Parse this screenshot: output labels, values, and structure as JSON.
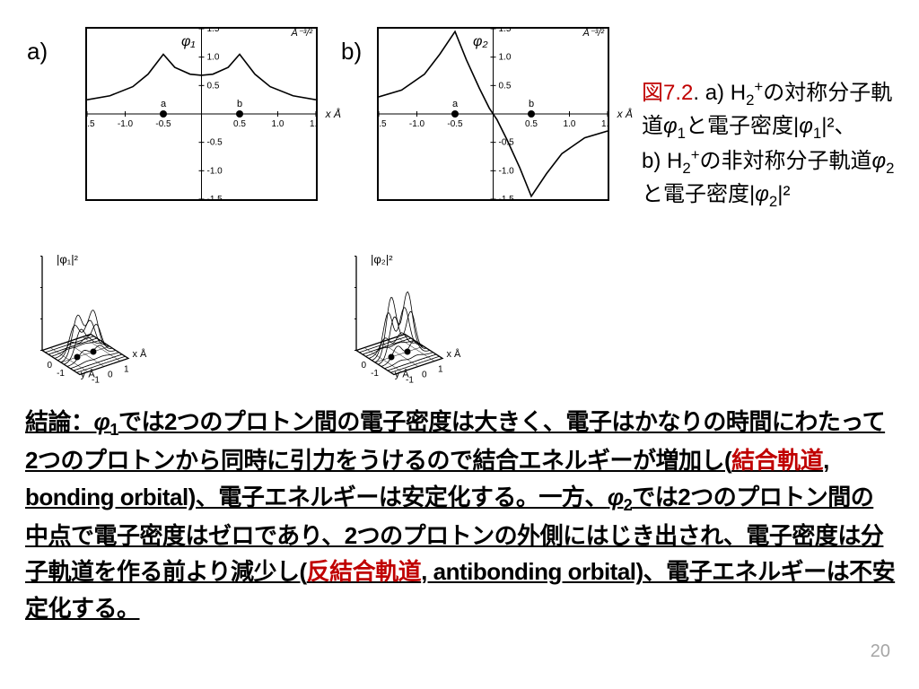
{
  "labels": {
    "a": "a)",
    "b": "b)"
  },
  "plot_a": {
    "phi_label": "φ₁",
    "xaxis": "x Å",
    "yunit": "Å⁻³/²",
    "xrange": [
      -1.5,
      1.5
    ],
    "yrange": [
      -1.5,
      1.5
    ],
    "xticks": [
      "-1.5",
      "-1.0",
      "-0.5",
      "0",
      "0.5",
      "1.0",
      "1.5"
    ],
    "yticks": [
      "-1.5",
      "-1.0",
      "-0.5",
      "0",
      "0.5",
      "1.0",
      "1.5"
    ],
    "atoms": [
      {
        "x": -0.5,
        "label": "a"
      },
      {
        "x": 0.5,
        "label": "b"
      }
    ],
    "curve": [
      [
        -1.5,
        0.25
      ],
      [
        -1.2,
        0.32
      ],
      [
        -0.9,
        0.48
      ],
      [
        -0.7,
        0.7
      ],
      [
        -0.5,
        1.05
      ],
      [
        -0.35,
        0.82
      ],
      [
        -0.15,
        0.7
      ],
      [
        0,
        0.68
      ],
      [
        0.15,
        0.7
      ],
      [
        0.35,
        0.82
      ],
      [
        0.5,
        1.05
      ],
      [
        0.7,
        0.7
      ],
      [
        0.9,
        0.48
      ],
      [
        1.2,
        0.32
      ],
      [
        1.5,
        0.25
      ]
    ],
    "line_color": "#000000",
    "axis_color": "#000000",
    "bg": "#ffffff"
  },
  "plot_b": {
    "phi_label": "φ₂",
    "xaxis": "x Å",
    "yunit": "Å⁻³/²",
    "xrange": [
      -1.5,
      1.5
    ],
    "yrange": [
      -1.5,
      1.5
    ],
    "xticks": [
      "-1.5",
      "-1.0",
      "-0.5",
      "0",
      "0.5",
      "1.0",
      "1.5"
    ],
    "yticks": [
      "-1.5",
      "-1.0",
      "-0.5",
      "0",
      "0.5",
      "1.0",
      "1.5"
    ],
    "atoms": [
      {
        "x": -0.5,
        "label": "a"
      },
      {
        "x": 0.5,
        "label": "b"
      }
    ],
    "curve": [
      [
        -1.5,
        0.3
      ],
      [
        -1.2,
        0.42
      ],
      [
        -0.9,
        0.7
      ],
      [
        -0.7,
        1.05
      ],
      [
        -0.5,
        1.45
      ],
      [
        -0.35,
        0.95
      ],
      [
        -0.18,
        0.45
      ],
      [
        -0.05,
        0.1
      ],
      [
        0,
        0
      ],
      [
        0.05,
        -0.1
      ],
      [
        0.18,
        -0.45
      ],
      [
        0.35,
        -0.95
      ],
      [
        0.5,
        -1.45
      ],
      [
        0.7,
        -1.05
      ],
      [
        0.9,
        -0.7
      ],
      [
        1.2,
        -0.42
      ],
      [
        1.5,
        -0.3
      ]
    ],
    "line_color": "#000000",
    "axis_color": "#000000",
    "bg": "#ffffff"
  },
  "surf_a": {
    "label": "|φ₁|²",
    "yunit": "Å⁻³",
    "xaxis": "x Å",
    "yaxis": "y Å",
    "zticks": [
      "0",
      "0.5",
      "1.0",
      "1.5"
    ],
    "xticks": [
      "-1",
      "0",
      "1"
    ],
    "yticks": [
      "-1",
      "0",
      "1"
    ],
    "peaks": [
      {
        "x": -0.5,
        "h": 0.55
      },
      {
        "x": 0.5,
        "h": 0.55
      }
    ],
    "merged": true,
    "line_color": "#000000"
  },
  "surf_b": {
    "label": "|φ₂|²",
    "yunit": "Å⁻³",
    "xaxis": "x Å",
    "yaxis": "y Å",
    "zticks": [
      "0",
      "0.5",
      "1.0",
      "1.5"
    ],
    "xticks": [
      "-1",
      "0",
      "1"
    ],
    "yticks": [
      "-1",
      "0",
      "1"
    ],
    "peaks": [
      {
        "x": -0.5,
        "h": 0.95
      },
      {
        "x": 0.5,
        "h": 0.95
      }
    ],
    "merged": false,
    "line_color": "#000000"
  },
  "caption": {
    "fig_prefix": "図",
    "fig_num": "7.2",
    "line1a": ". a) H",
    "line1b": "の対称分子軌道",
    "phi1": "φ",
    "sub1": "1",
    "line1c": "と電子密度|",
    "line1d": "|²、",
    "line2a": "b) H",
    "line2b": "の非対称分子軌道",
    "phi2": "φ",
    "sub2": "2",
    "line2c": "と電子密度|",
    "line2d": "|²"
  },
  "conclusion": {
    "lead": "結論：",
    "t1": "では2つのプロトン間の電子密度は大きく、電子はかなりの時間にわたって2つのプロトンから同時に引力をうけるので結合エネルギーが増加し(",
    "bonding_jp": "結合軌道",
    "t2": ", bonding orbital)、電子エネルギーは安定化する。一方、",
    "t3": "では2つのプロトン間の中点で電子密度はゼロであり、2つのプロトンの外側にはじき出され、電子密度は分子軌道を作る前より減少し(",
    "antibonding_jp": "反結合軌道",
    "t4": ", antibonding orbital)、電子エネルギーは不安定化する。"
  },
  "pagenum": "20",
  "colors": {
    "text": "#000000",
    "accent_red": "#c00000",
    "pagenum": "#a6a6a6",
    "bg": "#ffffff"
  }
}
